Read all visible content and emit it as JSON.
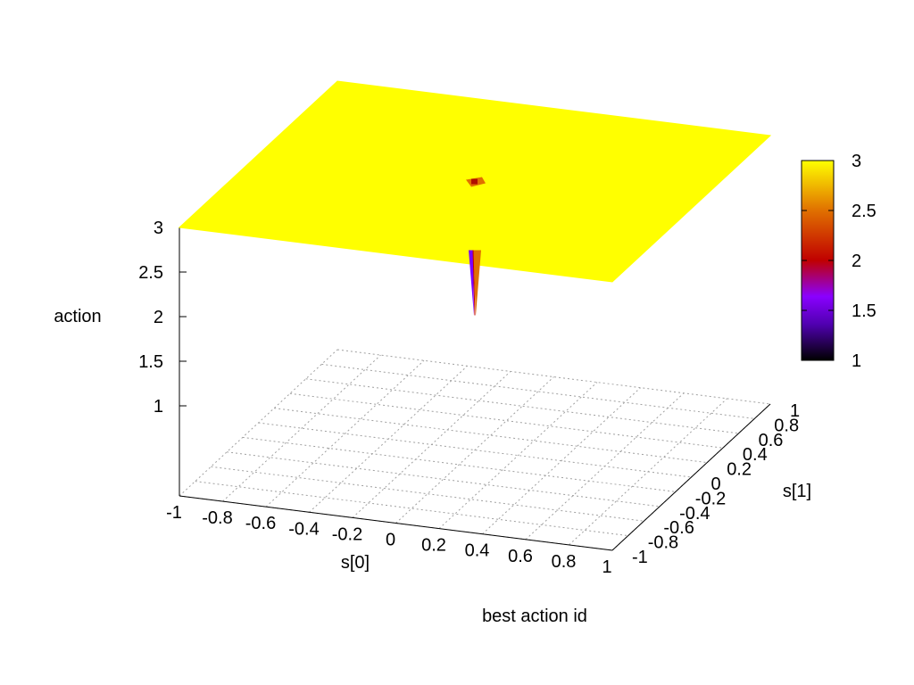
{
  "chart_data": {
    "type": "surface",
    "title": "best action id",
    "xlabel": "s[0]",
    "ylabel": "s[1]",
    "zlabel": "action",
    "xlim": [
      -1,
      1
    ],
    "ylim": [
      -1,
      1
    ],
    "zlim": [
      1,
      3
    ],
    "cblim": [
      1,
      3
    ],
    "x_ticks": [
      "-1",
      "-0.8",
      "-0.6",
      "-0.4",
      "-0.2",
      "0",
      "0.2",
      "0.4",
      "0.6",
      "0.8",
      "1"
    ],
    "y_ticks": [
      "-1",
      "-0.8",
      "-0.6",
      "-0.4",
      "-0.2",
      "0",
      "0.2",
      "0.4",
      "0.6",
      "0.8",
      "1"
    ],
    "z_ticks": [
      "1",
      "1.5",
      "2",
      "2.5",
      "3"
    ],
    "cb_ticks": [
      "1",
      "1.5",
      "2",
      "2.5",
      "3"
    ],
    "grid": true,
    "colormap": "black-purple-red-orange-yellow",
    "surface_value": 3,
    "dip": {
      "x": 0,
      "y": 0,
      "z": 1.5
    },
    "colors": {
      "surface": "#ffff00",
      "grid": "#a0a0a0"
    }
  }
}
